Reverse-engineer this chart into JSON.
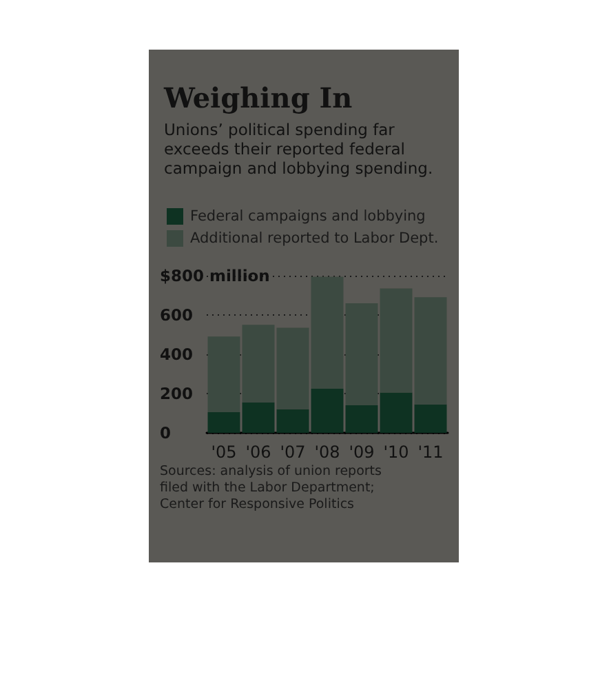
{
  "chart_data": {
    "type": "bar",
    "title": "Weighing In",
    "subtitle": "Unions’ political spending far exceeds their reported federal campaign and lobbying spending.",
    "categories": [
      "'05",
      "'06",
      "'07",
      "'08",
      "'09",
      "'10",
      "'11"
    ],
    "series": [
      {
        "name": "Federal campaigns and lobbying",
        "color": "#0e3222",
        "values": [
          105,
          155,
          120,
          225,
          140,
          205,
          145
        ]
      },
      {
        "name": "Additional reported to Labor Dept.",
        "color": "#3c4a41",
        "values": [
          385,
          395,
          415,
          570,
          520,
          530,
          545
        ]
      }
    ],
    "stacked": true,
    "ylim": [
      0,
      800
    ],
    "yticks": [
      0,
      200,
      400,
      600,
      {
        "value": 800,
        "label": "$800 million"
      }
    ],
    "grid": "y",
    "legend": "top left",
    "annotations": [
      "Sources: analysis of union reports filed with the Labor Department; Center for Responsive Politics"
    ]
  }
}
